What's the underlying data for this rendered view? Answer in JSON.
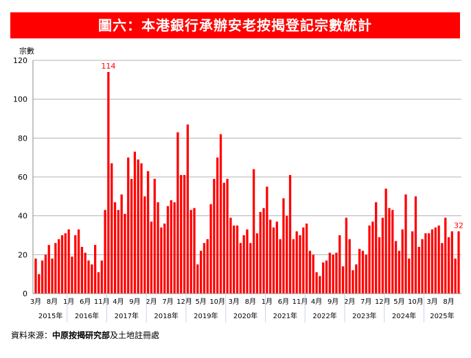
{
  "title": "圖六：本港銀行承辦安老按揭登記宗數統計",
  "source": {
    "prefix": "資料來源：",
    "bold": "中原按揭研究部",
    "suffix": "及土地註冊處"
  },
  "chart_data": {
    "type": "bar",
    "title": "圖六：本港銀行承辦安老按揭登記宗數統計",
    "ylabel": "宗數",
    "xlabel": "",
    "ylim": [
      0,
      120
    ],
    "yticks": [
      0,
      20,
      40,
      60,
      80,
      100,
      120
    ],
    "grid": true,
    "bar_color": "#ff0000",
    "start": "2015-03",
    "end": "2025-11",
    "month_tick_labels": [
      "3月",
      "8月",
      "1月",
      "6月",
      "11月",
      "4月",
      "9月",
      "2月",
      "7月",
      "12月",
      "5月",
      "10月",
      "3月",
      "8月",
      "1月",
      "6月",
      "11月",
      "4月",
      "9月",
      "2月",
      "7月",
      "12月",
      "5月",
      "10月",
      "3月",
      "8月"
    ],
    "year_labels": [
      "2015年",
      "2016年",
      "2017年",
      "2018年",
      "2019年",
      "2020年",
      "2021年",
      "2022年",
      "2023年",
      "2024年",
      "2025年"
    ],
    "data_labels": [
      {
        "month": "2017-01",
        "text": "114"
      },
      {
        "month": "2025-11",
        "text": "32"
      }
    ],
    "values": [
      18,
      10,
      17,
      20,
      25,
      18,
      26,
      28,
      30,
      31,
      33,
      19,
      30,
      33,
      24,
      21,
      17,
      15,
      25,
      11,
      17,
      43,
      114,
      67,
      47,
      43,
      51,
      41,
      70,
      59,
      73,
      69,
      67,
      50,
      63,
      37,
      59,
      47,
      34,
      36,
      45,
      48,
      47,
      83,
      61,
      61,
      87,
      43,
      44,
      15,
      22,
      26,
      28,
      46,
      59,
      70,
      82,
      57,
      59,
      39,
      35,
      35,
      26,
      30,
      33,
      26,
      64,
      31,
      42,
      44,
      55,
      38,
      34,
      37,
      28,
      49,
      40,
      61,
      28,
      32,
      30,
      34,
      36,
      22,
      20,
      11,
      9,
      16,
      17,
      21,
      20,
      21,
      30,
      14,
      39,
      28,
      12,
      15,
      23,
      22,
      20,
      35,
      37,
      47,
      29,
      39,
      54,
      44,
      43,
      27,
      22,
      33,
      51,
      18,
      32,
      50,
      24,
      28,
      31,
      31,
      33,
      34,
      35,
      26,
      39,
      29,
      32,
      18,
      32
    ]
  }
}
